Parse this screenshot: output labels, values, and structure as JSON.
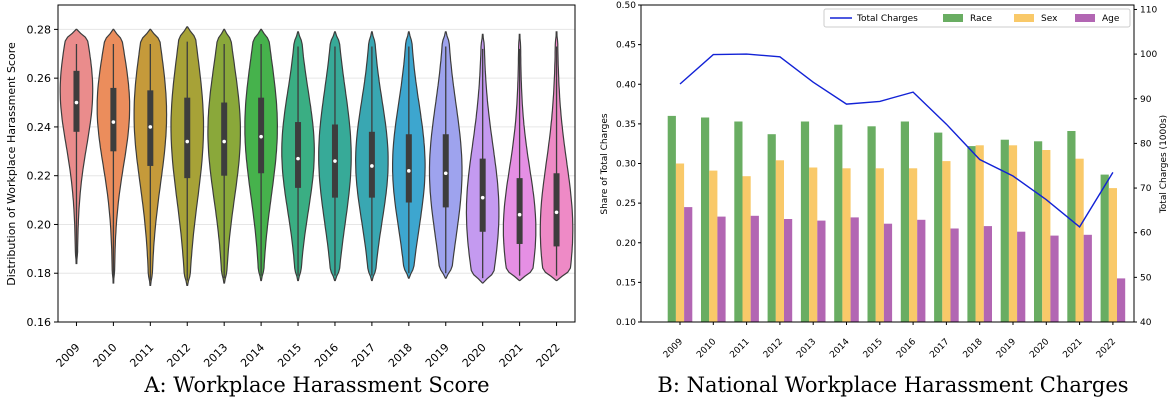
{
  "chart_data": [
    {
      "type": "violin",
      "caption": "A:  Workplace Harassment Score",
      "title": "",
      "xlabel": "",
      "ylabel": "Distribution of Workplace Harassment Score",
      "ylim": [
        0.16,
        0.29
      ],
      "yticks": [
        0.16,
        0.18,
        0.2,
        0.22,
        0.24,
        0.26,
        0.28
      ],
      "grid": "horizontal",
      "categories": [
        "2009",
        "2010",
        "2011",
        "2012",
        "2013",
        "2014",
        "2015",
        "2016",
        "2017",
        "2018",
        "2019",
        "2020",
        "2021",
        "2022"
      ],
      "colors": [
        "#ea8c8c",
        "#eb8d5c",
        "#c59a3a",
        "#a7a237",
        "#8aa83a",
        "#46b24c",
        "#3aae83",
        "#37aa98",
        "#39a7b2",
        "#3da6cf",
        "#9ea3ee",
        "#c49af0",
        "#e58fe4",
        "#ee8ac6"
      ],
      "series": [
        {
          "name": "2009",
          "min": 0.184,
          "max": 0.28,
          "q1": 0.238,
          "median": 0.25,
          "q3": 0.263,
          "mode": 0.255
        },
        {
          "name": "2010",
          "min": 0.176,
          "max": 0.28,
          "q1": 0.23,
          "median": 0.242,
          "q3": 0.256,
          "mode": 0.248
        },
        {
          "name": "2011",
          "min": 0.175,
          "max": 0.28,
          "q1": 0.224,
          "median": 0.24,
          "q3": 0.255,
          "mode": 0.245
        },
        {
          "name": "2012",
          "min": 0.175,
          "max": 0.281,
          "q1": 0.219,
          "median": 0.234,
          "q3": 0.252,
          "mode": 0.24
        },
        {
          "name": "2013",
          "min": 0.176,
          "max": 0.28,
          "q1": 0.22,
          "median": 0.234,
          "q3": 0.25,
          "mode": 0.238
        },
        {
          "name": "2014",
          "min": 0.177,
          "max": 0.28,
          "q1": 0.221,
          "median": 0.236,
          "q3": 0.252,
          "mode": 0.24
        },
        {
          "name": "2015",
          "min": 0.177,
          "max": 0.279,
          "q1": 0.215,
          "median": 0.227,
          "q3": 0.242,
          "mode": 0.23
        },
        {
          "name": "2016",
          "min": 0.177,
          "max": 0.279,
          "q1": 0.211,
          "median": 0.226,
          "q3": 0.241,
          "mode": 0.228
        },
        {
          "name": "2017",
          "min": 0.177,
          "max": 0.279,
          "q1": 0.211,
          "median": 0.224,
          "q3": 0.238,
          "mode": 0.226
        },
        {
          "name": "2018",
          "min": 0.178,
          "max": 0.279,
          "q1": 0.209,
          "median": 0.222,
          "q3": 0.237,
          "mode": 0.224
        },
        {
          "name": "2019",
          "min": 0.178,
          "max": 0.279,
          "q1": 0.207,
          "median": 0.221,
          "q3": 0.237,
          "mode": 0.222
        },
        {
          "name": "2020",
          "min": 0.176,
          "max": 0.278,
          "q1": 0.197,
          "median": 0.211,
          "q3": 0.227,
          "mode": 0.205
        },
        {
          "name": "2021",
          "min": 0.177,
          "max": 0.278,
          "q1": 0.192,
          "median": 0.204,
          "q3": 0.219,
          "mode": 0.198
        },
        {
          "name": "2022",
          "min": 0.177,
          "max": 0.279,
          "q1": 0.191,
          "median": 0.205,
          "q3": 0.221,
          "mode": 0.198
        }
      ]
    },
    {
      "type": "bar+line",
      "caption": "B:  National Workplace Harassment Charges",
      "title": "",
      "xlabel": "",
      "ylabel": "Share of Total Charges",
      "y2label": "Total Charges (1000s)",
      "ylim": [
        0.1,
        0.5
      ],
      "y2lim": [
        40,
        111
      ],
      "yticks": [
        0.1,
        0.15,
        0.2,
        0.25,
        0.3,
        0.35,
        0.4,
        0.45,
        0.5
      ],
      "y2ticks": [
        40,
        50,
        60,
        70,
        80,
        90,
        100,
        110
      ],
      "legend_placement": "top-right",
      "categories": [
        "2009",
        "2010",
        "2011",
        "2012",
        "2013",
        "2014",
        "2015",
        "2016",
        "2017",
        "2018",
        "2019",
        "2020",
        "2021",
        "2022"
      ],
      "series": [
        {
          "name": "Race",
          "kind": "bar",
          "color": "#4f9f47",
          "values": [
            0.36,
            0.358,
            0.353,
            0.337,
            0.353,
            0.349,
            0.347,
            0.353,
            0.339,
            0.322,
            0.33,
            0.328,
            0.341,
            0.286
          ]
        },
        {
          "name": "Sex",
          "kind": "bar",
          "color": "#f8c04f",
          "values": [
            0.3,
            0.291,
            0.284,
            0.304,
            0.295,
            0.294,
            0.294,
            0.294,
            0.303,
            0.323,
            0.323,
            0.317,
            0.306,
            0.269
          ]
        },
        {
          "name": "Age",
          "kind": "bar",
          "color": "#a54ba6",
          "values": [
            0.245,
            0.233,
            0.234,
            0.23,
            0.228,
            0.232,
            0.224,
            0.229,
            0.218,
            0.221,
            0.214,
            0.209,
            0.21,
            0.155
          ]
        },
        {
          "name": "Total Charges",
          "kind": "line",
          "axis": "right",
          "color": "#1222d6",
          "values": [
            93.3,
            99.9,
            100.0,
            99.4,
            93.7,
            88.8,
            89.4,
            91.5,
            84.3,
            76.4,
            72.7,
            67.4,
            61.3,
            73.5
          ]
        }
      ]
    }
  ]
}
